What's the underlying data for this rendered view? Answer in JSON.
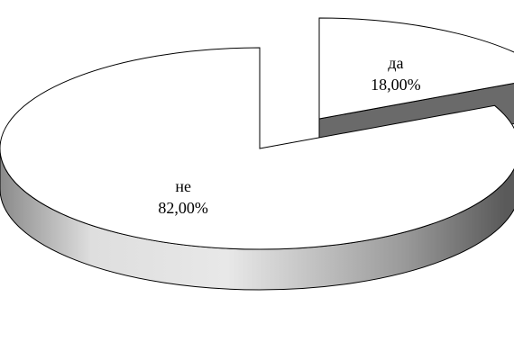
{
  "chart_data": {
    "type": "pie",
    "title": "",
    "style": "3d-exploded",
    "legend": "none",
    "slices": [
      {
        "label": "да",
        "value": 18.0,
        "value_label": "18,00%",
        "exploded": true
      },
      {
        "label": "не",
        "value": 82.0,
        "value_label": "82,00%",
        "exploded": false
      }
    ],
    "colors": {
      "top_face": "#ffffff",
      "outline": "#000000",
      "side_light": "#ececec",
      "side_dark": "#555555"
    }
  }
}
